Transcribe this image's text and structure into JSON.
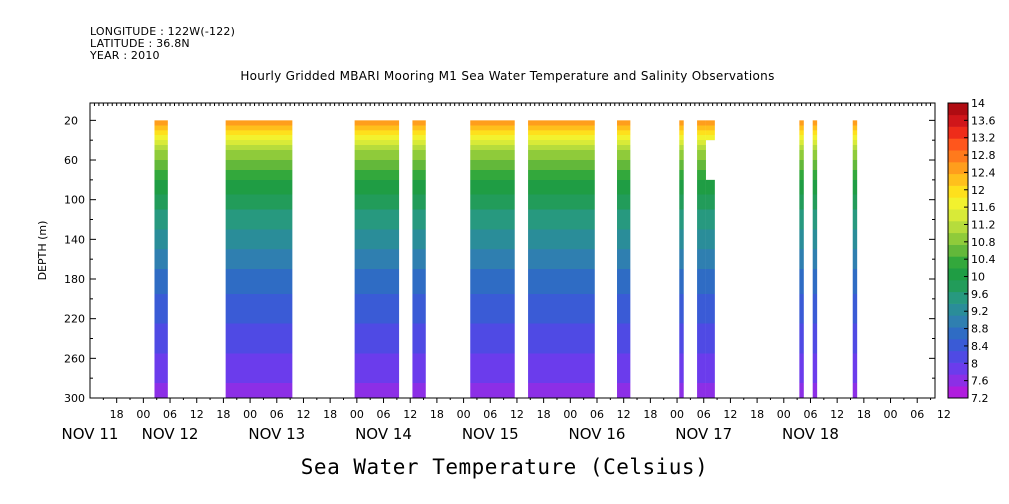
{
  "header": {
    "longitude": "LONGITUDE : 122W(-122)",
    "latitude": "LATITUDE : 36.8N",
    "year": "YEAR : 2010",
    "title": "Hourly Gridded MBARI Mooring M1 Sea Water Temperature and Salinity Observations"
  },
  "chart_data": {
    "type": "heatmap",
    "title": "Hourly Gridded MBARI Mooring M1 Sea Water Temperature and Salinity Observations",
    "xlabel": "",
    "ylabel": "DEPTH (m)",
    "colorbar_title": "Sea Water Temperature (Celsius)",
    "ylim": [
      300,
      0
    ],
    "y_ticks": [
      20,
      60,
      100,
      140,
      180,
      220,
      260,
      300
    ],
    "x_hour_start": 12,
    "x_hour_end": 202,
    "x_hour_ticks": [
      {
        "h": 18,
        "label": "18"
      },
      {
        "h": 24,
        "label": "00"
      },
      {
        "h": 30,
        "label": "06"
      },
      {
        "h": 36,
        "label": "12"
      },
      {
        "h": 42,
        "label": "18"
      },
      {
        "h": 48,
        "label": "00"
      },
      {
        "h": 54,
        "label": "06"
      },
      {
        "h": 60,
        "label": "12"
      },
      {
        "h": 66,
        "label": "18"
      },
      {
        "h": 72,
        "label": "00"
      },
      {
        "h": 78,
        "label": "06"
      },
      {
        "h": 84,
        "label": "12"
      },
      {
        "h": 90,
        "label": "18"
      },
      {
        "h": 96,
        "label": "00"
      },
      {
        "h": 102,
        "label": "06"
      },
      {
        "h": 108,
        "label": "12"
      },
      {
        "h": 114,
        "label": "18"
      },
      {
        "h": 120,
        "label": "00"
      },
      {
        "h": 126,
        "label": "06"
      },
      {
        "h": 132,
        "label": "12"
      },
      {
        "h": 138,
        "label": "18"
      },
      {
        "h": 144,
        "label": "00"
      },
      {
        "h": 150,
        "label": "06"
      },
      {
        "h": 156,
        "label": "12"
      },
      {
        "h": 162,
        "label": "18"
      },
      {
        "h": 168,
        "label": "00"
      },
      {
        "h": 174,
        "label": "06"
      },
      {
        "h": 180,
        "label": "12"
      },
      {
        "h": 186,
        "label": "18"
      },
      {
        "h": 192,
        "label": "00"
      },
      {
        "h": 198,
        "label": "06"
      },
      {
        "h": 204,
        "label": "12"
      }
    ],
    "day_labels": [
      {
        "h": 12,
        "label": "NOV 11"
      },
      {
        "h": 30,
        "label": "NOV 12"
      },
      {
        "h": 54,
        "label": "NOV 13"
      },
      {
        "h": 78,
        "label": "NOV 14"
      },
      {
        "h": 102,
        "label": "NOV 15"
      },
      {
        "h": 126,
        "label": "NOV 16"
      },
      {
        "h": 150,
        "label": "NOV 17"
      },
      {
        "h": 174,
        "label": "NOV 18"
      }
    ],
    "data_segments": [
      {
        "start": 26.5,
        "end": 29.5,
        "top": 20,
        "bottom": 300
      },
      {
        "start": 42.5,
        "end": 57.5,
        "top": 20,
        "bottom": 300
      },
      {
        "start": 71.5,
        "end": 81.5,
        "top": 20,
        "bottom": 300
      },
      {
        "start": 84.5,
        "end": 87.5,
        "top": 20,
        "bottom": 300
      },
      {
        "start": 97.5,
        "end": 107.5,
        "top": 20,
        "bottom": 300
      },
      {
        "start": 110.5,
        "end": 125.5,
        "top": 20,
        "bottom": 300
      },
      {
        "start": 130.5,
        "end": 133.5,
        "top": 20,
        "bottom": 300
      },
      {
        "start": 144.5,
        "end": 145.5,
        "top": 20,
        "bottom": 300
      },
      {
        "start": 148.5,
        "end": 150.5,
        "top": 20,
        "bottom": 300
      },
      {
        "start": 150.5,
        "end": 152.5,
        "top": 20,
        "bottom": 40
      },
      {
        "start": 150.5,
        "end": 152.5,
        "top": 80,
        "bottom": 300
      },
      {
        "start": 171.5,
        "end": 172.5,
        "top": 20,
        "bottom": 300
      },
      {
        "start": 174.5,
        "end": 175.5,
        "top": 20,
        "bottom": 300
      },
      {
        "start": 183.5,
        "end": 184.5,
        "top": 20,
        "bottom": 300
      }
    ],
    "temperature_profile": {
      "depth": [
        20,
        30,
        40,
        50,
        60,
        80,
        100,
        120,
        140,
        160,
        180,
        200,
        220,
        240,
        260,
        280,
        300
      ],
      "temp": [
        12.6,
        12.0,
        11.4,
        11.0,
        10.6,
        10.1,
        9.75,
        9.45,
        9.2,
        8.95,
        8.7,
        8.5,
        8.3,
        8.1,
        7.95,
        7.75,
        7.5
      ]
    },
    "colorbar": {
      "levels": [
        7.2,
        7.6,
        8,
        8.4,
        8.8,
        9.2,
        9.6,
        10,
        10.4,
        10.8,
        11.2,
        11.6,
        12,
        12.4,
        12.8,
        13.2,
        13.6,
        14
      ],
      "colors": [
        "#b01dde",
        "#8c2fe6",
        "#6b3cec",
        "#4f4ae4",
        "#3a5bd6",
        "#2f6cc4",
        "#2f7fb0",
        "#2a8d99",
        "#27997f",
        "#229c5a",
        "#1f9d44",
        "#33a83c",
        "#63b83a",
        "#8fcb3a",
        "#b6dc3c",
        "#d8ea38",
        "#f2f22e",
        "#fee01c",
        "#ffc01c",
        "#ff9e1c",
        "#ff7a1c",
        "#ff561c",
        "#ee2c1a",
        "#d0161a",
        "#b00c12"
      ]
    }
  }
}
